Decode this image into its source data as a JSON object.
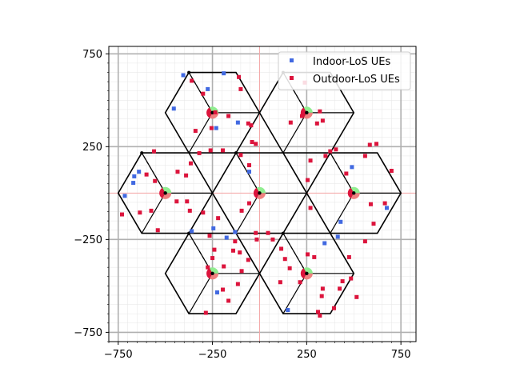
{
  "chart_data": {
    "type": "scatter",
    "title": "",
    "xlabel": "",
    "ylabel": "",
    "xlim": [
      -800,
      830
    ],
    "ylim": [
      -800,
      790
    ],
    "x_ticks": [
      -750,
      -250,
      250,
      750
    ],
    "y_ticks": [
      -750,
      -250,
      250,
      750
    ],
    "x_tick_labels": [
      "−750",
      "−250",
      "250",
      "750"
    ],
    "y_tick_labels": [
      "−750",
      "−250",
      "250",
      "750"
    ],
    "grid": true,
    "legend_position": "top-right",
    "hex_radius": 250,
    "cell_centers": [
      [
        0,
        0
      ],
      [
        -500,
        0
      ],
      [
        500,
        0
      ],
      [
        -250,
        433
      ],
      [
        250,
        433
      ],
      [
        -250,
        -433
      ],
      [
        250,
        -433
      ]
    ],
    "sector_boundary_angles_deg": [
      0,
      120,
      240
    ],
    "beam_dashed_angle_deg": 120,
    "colors": {
      "indoor": "#4169e1",
      "outdoor": "#dc143c",
      "sector_green": "#90ee90",
      "sector_red": "#dc143c",
      "sector_red_light": "#f08080",
      "axis_red_line": "#f4a6a6"
    },
    "series": [
      {
        "name": "Indoor-LoS UEs",
        "color": "#4169e1",
        "marker": "square",
        "points": [
          [
            -230,
            350
          ],
          [
            -115,
            380
          ],
          [
            -455,
            455
          ],
          [
            -405,
            635
          ],
          [
            -275,
            560
          ],
          [
            -190,
            645
          ],
          [
            -640,
            115
          ],
          [
            -670,
            55
          ],
          [
            -715,
            -15
          ],
          [
            -665,
            90
          ],
          [
            -360,
            -205
          ],
          [
            -245,
            -190
          ],
          [
            -225,
            -535
          ],
          [
            -130,
            -210
          ],
          [
            -175,
            -240
          ],
          [
            -55,
            115
          ],
          [
            150,
            -630
          ],
          [
            345,
            -270
          ],
          [
            430,
            -155
          ],
          [
            415,
            -235
          ],
          [
            675,
            -80
          ],
          [
            490,
            140
          ]
        ]
      },
      {
        "name": "Outdoor-LoS UEs",
        "color": "#dc143c",
        "marker": "square",
        "points": [
          [
            -360,
            605
          ],
          [
            -110,
            625
          ],
          [
            -235,
            435
          ],
          [
            -165,
            415
          ],
          [
            -255,
            350
          ],
          [
            -340,
            335
          ],
          [
            -260,
            230
          ],
          [
            -195,
            230
          ],
          [
            -100,
            205
          ],
          [
            -55,
            150
          ],
          [
            -40,
            275
          ],
          [
            -20,
            265
          ],
          [
            -45,
            365
          ],
          [
            -60,
            375
          ],
          [
            -100,
            560
          ],
          [
            -300,
            535
          ],
          [
            -560,
            225
          ],
          [
            -600,
            100
          ],
          [
            -555,
            65
          ],
          [
            -435,
            115
          ],
          [
            -390,
            95
          ],
          [
            -440,
            -45
          ],
          [
            -385,
            -45
          ],
          [
            -370,
            -95
          ],
          [
            -300,
            -105
          ],
          [
            -575,
            -95
          ],
          [
            -635,
            -105
          ],
          [
            -730,
            -115
          ],
          [
            -540,
            -200
          ],
          [
            -365,
            160
          ],
          [
            -320,
            215
          ],
          [
            -220,
            -135
          ],
          [
            -265,
            -230
          ],
          [
            -240,
            -305
          ],
          [
            -275,
            -400
          ],
          [
            -250,
            -350
          ],
          [
            -285,
            -645
          ],
          [
            -190,
            -395
          ],
          [
            -195,
            -520
          ],
          [
            -165,
            -580
          ],
          [
            -60,
            -360
          ],
          [
            -95,
            -420
          ],
          [
            -115,
            -490
          ],
          [
            -55,
            -55
          ],
          [
            -95,
            -95
          ],
          [
            -130,
            -260
          ],
          [
            -140,
            -310
          ],
          [
            -105,
            -320
          ],
          [
            -20,
            -215
          ],
          [
            -15,
            -250
          ],
          [
            45,
            -215
          ],
          [
            70,
            -250
          ],
          [
            115,
            -300
          ],
          [
            135,
            -355
          ],
          [
            160,
            -405
          ],
          [
            110,
            -480
          ],
          [
            215,
            -480
          ],
          [
            255,
            -330
          ],
          [
            290,
            -345
          ],
          [
            335,
            -515
          ],
          [
            330,
            -555
          ],
          [
            310,
            -640
          ],
          [
            320,
            -660
          ],
          [
            395,
            -620
          ],
          [
            425,
            -515
          ],
          [
            440,
            -475
          ],
          [
            485,
            -460
          ],
          [
            475,
            -345
          ],
          [
            515,
            -560
          ],
          [
            560,
            -260
          ],
          [
            255,
            70
          ],
          [
            270,
            -80
          ],
          [
            270,
            175
          ],
          [
            350,
            200
          ],
          [
            375,
            225
          ],
          [
            405,
            235
          ],
          [
            460,
            105
          ],
          [
            590,
            -60
          ],
          [
            605,
            -165
          ],
          [
            665,
            -55
          ],
          [
            700,
            120
          ],
          [
            560,
            200
          ],
          [
            585,
            260
          ],
          [
            620,
            265
          ],
          [
            240,
            595
          ],
          [
            225,
            415
          ],
          [
            165,
            380
          ],
          [
            305,
            375
          ],
          [
            320,
            440
          ],
          [
            335,
            390
          ]
        ]
      }
    ]
  }
}
